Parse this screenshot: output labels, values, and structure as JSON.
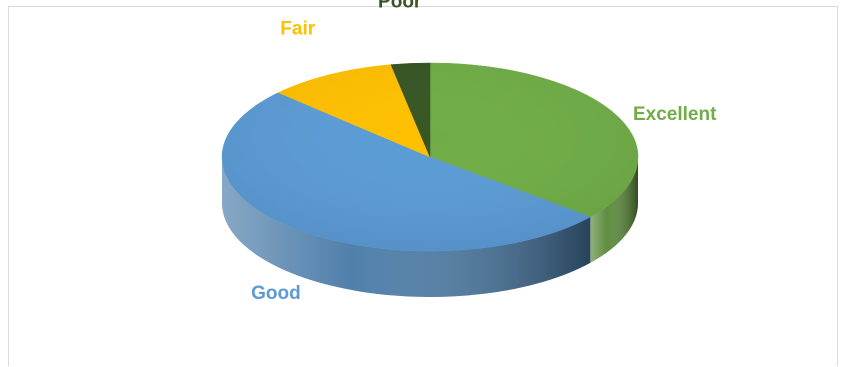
{
  "chart_data": {
    "type": "pie",
    "style": "3d",
    "categories": [
      "Excellent",
      "Good",
      "Fair",
      "Poor"
    ],
    "values": [
      36,
      51,
      10,
      3
    ],
    "unit": "percent (estimated)",
    "colors": [
      "#70AD47",
      "#5B9BD5",
      "#FFC000",
      "#375623"
    ],
    "label_colors": [
      "#70AD47",
      "#5B9BD5",
      "#FFC000",
      "#375623"
    ],
    "legend": "none",
    "title": ""
  }
}
